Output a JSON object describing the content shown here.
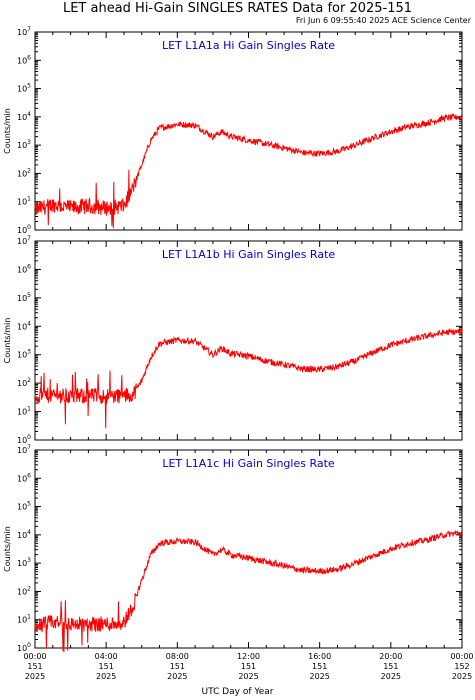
{
  "page": {
    "title": "LET ahead Hi-Gain SINGLES RATES Data for 2025-151",
    "timestamp": "Fri Jun  6 09:55:40 2025 ACE Science Center",
    "xlabel": "UTC Day of Year"
  },
  "colors": {
    "series": "#ff0000",
    "panel_title": "#0000cc",
    "axes": "#000000"
  },
  "chart_data": [
    {
      "type": "line",
      "title": "LET L1A1a Hi Gain Singles Rate",
      "ylabel": "Counts/min",
      "yscale": "log",
      "ylim": [
        1,
        10000000
      ],
      "y_ticks": [
        "10^0",
        "10^1",
        "10^2",
        "10^3",
        "10^4",
        "10^5",
        "10^6",
        "10^7"
      ],
      "x_ticks": [
        [
          "00:00",
          "151",
          "2025"
        ],
        [
          "04:00",
          "151",
          "2025"
        ],
        [
          "08:00",
          "151",
          "2025"
        ],
        [
          "12:00",
          "151",
          "2025"
        ],
        [
          "16:00",
          "151",
          "2025"
        ],
        [
          "20:00",
          "151",
          "2025"
        ],
        [
          "00:00",
          "152",
          "2025"
        ]
      ],
      "xlim_hours": [
        0,
        24
      ],
      "series": [
        {
          "color": "#ff0000",
          "x_hours": [
            0,
            1,
            2,
            3,
            4,
            5,
            5.5,
            6,
            6.5,
            7,
            8,
            9,
            10,
            10.5,
            11,
            12,
            13,
            14,
            15,
            16,
            17,
            18,
            19,
            20,
            21,
            22,
            23,
            24
          ],
          "values": [
            5,
            8,
            6,
            7,
            6,
            7,
            30,
            200,
            1500,
            4000,
            5500,
            5000,
            2000,
            3000,
            2000,
            1500,
            1100,
            800,
            550,
            500,
            600,
            1000,
            1800,
            3000,
            4500,
            6000,
            9000,
            10000
          ]
        }
      ]
    },
    {
      "type": "line",
      "title": "LET L1A1b Hi Gain Singles Rate",
      "ylabel": "Counts/min",
      "yscale": "log",
      "ylim": [
        1,
        10000000
      ],
      "y_ticks": [
        "10^0",
        "10^1",
        "10^2",
        "10^3",
        "10^4",
        "10^5",
        "10^6",
        "10^7"
      ],
      "x_ticks": [
        [
          "00:00",
          "151",
          "2025"
        ],
        [
          "04:00",
          "151",
          "2025"
        ],
        [
          "08:00",
          "151",
          "2025"
        ],
        [
          "12:00",
          "151",
          "2025"
        ],
        [
          "16:00",
          "151",
          "2025"
        ],
        [
          "20:00",
          "151",
          "2025"
        ],
        [
          "00:00",
          "152",
          "2025"
        ]
      ],
      "xlim_hours": [
        0,
        24
      ],
      "series": [
        {
          "color": "#ff0000",
          "x_hours": [
            0,
            1,
            2,
            3,
            4,
            5,
            5.5,
            6,
            6.5,
            7,
            8,
            9,
            10,
            10.5,
            11,
            12,
            13,
            14,
            15,
            16,
            17,
            18,
            19,
            20,
            21,
            22,
            23,
            24
          ],
          "values": [
            35,
            38,
            35,
            36,
            35,
            36,
            40,
            120,
            800,
            2500,
            3200,
            3000,
            1000,
            1700,
            1100,
            900,
            600,
            450,
            320,
            300,
            380,
            600,
            1200,
            2200,
            3200,
            4500,
            6000,
            6500
          ]
        }
      ]
    },
    {
      "type": "line",
      "title": "LET L1A1c Hi Gain Singles Rate",
      "ylabel": "Counts/min",
      "yscale": "log",
      "ylim": [
        1,
        10000000
      ],
      "y_ticks": [
        "10^0",
        "10^1",
        "10^2",
        "10^3",
        "10^4",
        "10^5",
        "10^6",
        "10^7"
      ],
      "x_ticks": [
        [
          "00:00",
          "151",
          "2025"
        ],
        [
          "04:00",
          "151",
          "2025"
        ],
        [
          "08:00",
          "151",
          "2025"
        ],
        [
          "12:00",
          "151",
          "2025"
        ],
        [
          "16:00",
          "151",
          "2025"
        ],
        [
          "20:00",
          "151",
          "2025"
        ],
        [
          "00:00",
          "152",
          "2025"
        ]
      ],
      "xlim_hours": [
        0,
        24
      ],
      "series": [
        {
          "color": "#ff0000",
          "x_hours": [
            0,
            1,
            2,
            3,
            4,
            5,
            5.5,
            6,
            6.5,
            7,
            8,
            9,
            10,
            10.5,
            11,
            12,
            13,
            14,
            15,
            16,
            17,
            18,
            19,
            20,
            21,
            22,
            23,
            24
          ],
          "values": [
            6,
            8,
            7,
            7,
            7,
            8,
            30,
            250,
            2000,
            5000,
            6000,
            5500,
            2000,
            3000,
            2000,
            1500,
            1100,
            800,
            550,
            520,
            600,
            1000,
            1800,
            3200,
            5000,
            6500,
            10000,
            12000
          ]
        }
      ]
    }
  ]
}
